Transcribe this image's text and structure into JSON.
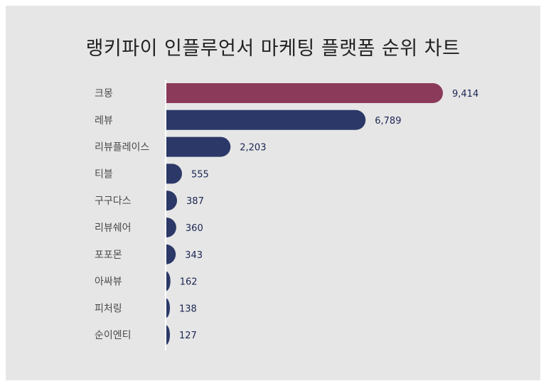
{
  "title": "랭키파이 인플루언서 마케팅 플랫폼 순위 차트",
  "colors": {
    "highlight": "#8b3a5a",
    "bar": "#2b3868",
    "background": "#e6e6e6",
    "axis": "#ffffff"
  },
  "chart_data": {
    "type": "bar",
    "orientation": "horizontal",
    "title": "랭키파이 인플루언서 마케팅 플랫폼 순위 차트",
    "categories": [
      "크몽",
      "레뷰",
      "리뷰플레이스",
      "티블",
      "구구다스",
      "리뷰쉐어",
      "포포몬",
      "아싸뷰",
      "피처링",
      "순이엔티"
    ],
    "values": [
      9414,
      6789,
      2203,
      555,
      387,
      360,
      343,
      162,
      138,
      127
    ],
    "value_labels": [
      "9,414",
      "6,789",
      "2,203",
      "555",
      "387",
      "360",
      "343",
      "162",
      "138",
      "127"
    ],
    "highlight_index": 0,
    "xlim": [
      0,
      9414
    ],
    "grid": false,
    "legend": "none"
  }
}
